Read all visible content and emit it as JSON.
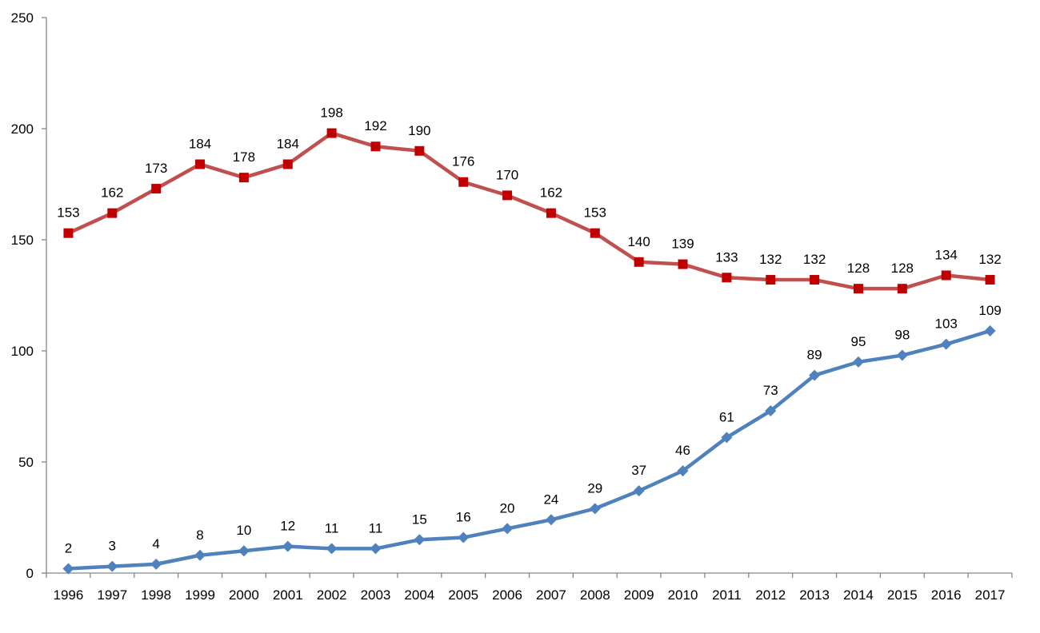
{
  "chart_data": {
    "type": "line",
    "title": "",
    "xlabel": "",
    "ylabel": "",
    "categories": [
      "1996",
      "1997",
      "1998",
      "1999",
      "2000",
      "2001",
      "2002",
      "2003",
      "2004",
      "2005",
      "2006",
      "2007",
      "2008",
      "2009",
      "2010",
      "2011",
      "2012",
      "2013",
      "2014",
      "2015",
      "2016",
      "2017"
    ],
    "ylim": [
      0,
      250
    ],
    "yticks": [
      0,
      50,
      100,
      150,
      200,
      250
    ],
    "grid": false,
    "legend": "none",
    "series": [
      {
        "values": [
          153,
          162,
          173,
          184,
          178,
          184,
          198,
          192,
          190,
          176,
          170,
          162,
          153,
          140,
          139,
          133,
          132,
          132,
          128,
          128,
          134,
          132
        ],
        "color": "#c0504d",
        "marker_color": "#c00000",
        "marker": "square"
      },
      {
        "values": [
          2,
          3,
          4,
          8,
          10,
          12,
          11,
          11,
          15,
          16,
          20,
          24,
          29,
          37,
          46,
          61,
          73,
          89,
          95,
          98,
          103,
          109
        ],
        "color": "#4f81bd",
        "marker_color": "#4f81bd",
        "marker": "diamond"
      }
    ]
  }
}
